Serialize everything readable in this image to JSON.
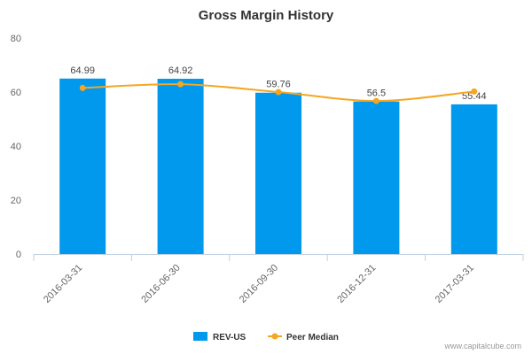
{
  "chart_data": {
    "type": "bar",
    "title": "Gross Margin History",
    "categories": [
      "2016-03-31",
      "2016-06-30",
      "2016-09-30",
      "2016-12-31",
      "2017-03-31"
    ],
    "series": [
      {
        "name": "REV-US",
        "type": "bar",
        "color": "#0099ee",
        "values": [
          64.99,
          64.92,
          59.76,
          56.5,
          55.44
        ]
      },
      {
        "name": "Peer Median",
        "type": "line",
        "color": "#f5a623",
        "values": [
          61.5,
          62.9,
          60.0,
          56.7,
          60.2
        ]
      }
    ],
    "ylim": [
      0,
      80
    ],
    "yticks": [
      0,
      20,
      40,
      60,
      80
    ],
    "data_labels": [
      "64.99",
      "64.92",
      "59.76",
      "56.5",
      "55.44"
    ],
    "legend_position": "bottom",
    "grid": false
  },
  "credit": "www.capitalcube.com"
}
